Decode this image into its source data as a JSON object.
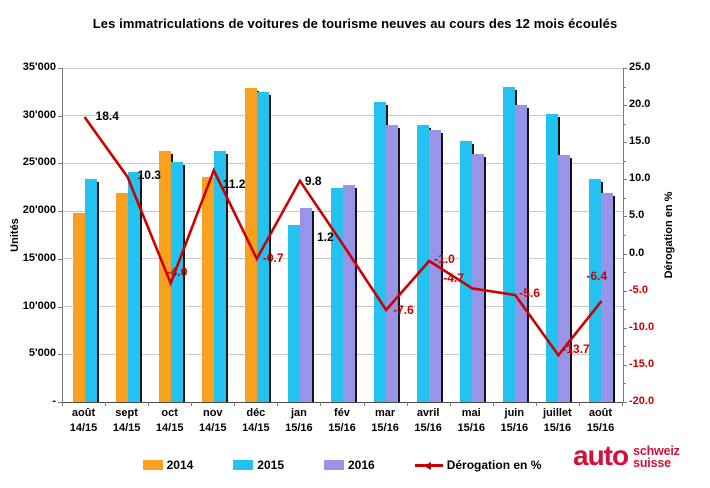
{
  "title": "Les immatriculations de voitures de tourisme neuves au cours des 12 mois écoulés",
  "chart_data": {
    "type": "bar",
    "subtype": "grouped-bar-with-line-overlay-dual-axis",
    "title": "Les immatriculations de voitures de tourisme neuves au cours des 12 mois écoulés",
    "categories": [
      {
        "month": "août",
        "year": "14/15"
      },
      {
        "month": "sept",
        "year": "14/15"
      },
      {
        "month": "oct",
        "year": "14/15"
      },
      {
        "month": "nov",
        "year": "14/15"
      },
      {
        "month": "déc",
        "year": "14/15"
      },
      {
        "month": "jan",
        "year": "15/16"
      },
      {
        "month": "fév",
        "year": "15/16"
      },
      {
        "month": "mar",
        "year": "15/16"
      },
      {
        "month": "avril",
        "year": "15/16"
      },
      {
        "month": "mai",
        "year": "15/16"
      },
      {
        "month": "juin",
        "year": "15/16"
      },
      {
        "month": "juillet",
        "year": "15/16"
      },
      {
        "month": "août",
        "year": "15/16"
      }
    ],
    "bar_series": [
      {
        "name": "2014",
        "color": "#F9A01E",
        "values": [
          19800,
          21900,
          26300,
          23600,
          32900,
          null,
          null,
          null,
          null,
          null,
          null,
          null,
          null
        ]
      },
      {
        "name": "2015",
        "color": "#23C2F1",
        "values": [
          23400,
          24100,
          25200,
          26300,
          32500,
          18500,
          22400,
          31400,
          29000,
          27300,
          33000,
          30200,
          23400
        ]
      },
      {
        "name": "2016",
        "color": "#9894E8",
        "values": [
          null,
          null,
          null,
          null,
          null,
          20300,
          22700,
          29000,
          28500,
          26000,
          31100,
          25900,
          21900
        ]
      }
    ],
    "line_series": {
      "name": "Dérogation en %",
      "color": "#CC0000",
      "values": [
        18.4,
        10.3,
        -4.0,
        11.2,
        -0.7,
        9.8,
        1.2,
        -7.6,
        -1.0,
        -4.7,
        -5.6,
        -13.7,
        -6.4
      ],
      "labels": [
        "18.4",
        "10.3",
        "-4.0",
        "11.2",
        "-0.7",
        "9.8",
        "1.2",
        "-7.6",
        "-1.0",
        "-4.7",
        "-5.6",
        "-13.7",
        "-6.4"
      ]
    },
    "y_left": {
      "title": "Unités",
      "min": 0,
      "max": 35000,
      "step": 5000,
      "tick_labels": [
        "35'000",
        "30'000",
        "25'000",
        "20'000",
        "15'000",
        "10'000",
        "5'000",
        "-"
      ]
    },
    "y_right": {
      "title": "Dérogation en %",
      "min": -20,
      "max": 25,
      "step": 5,
      "minor_step": 2.5,
      "tick_labels": [
        "25.0",
        "20.0",
        "15.0",
        "10.0",
        "5.0",
        "0.0",
        "-5.0",
        "-10.0",
        "-15.0",
        "-20.0"
      ],
      "negative_color": "#CC0000"
    },
    "grid": true,
    "legend_position": "bottom"
  },
  "legend": {
    "items": [
      {
        "label": "2014",
        "color": "#F9A01E",
        "type": "swatch"
      },
      {
        "label": "2015",
        "color": "#23C2F1",
        "type": "swatch"
      },
      {
        "label": "2016",
        "color": "#9894E8",
        "type": "swatch"
      },
      {
        "label": "Dérogation en %",
        "color": "#CC0000",
        "type": "line"
      }
    ]
  },
  "logo": {
    "word": "auto",
    "line1": "schweiz",
    "line2": "suisse",
    "color": "#D0113B"
  }
}
